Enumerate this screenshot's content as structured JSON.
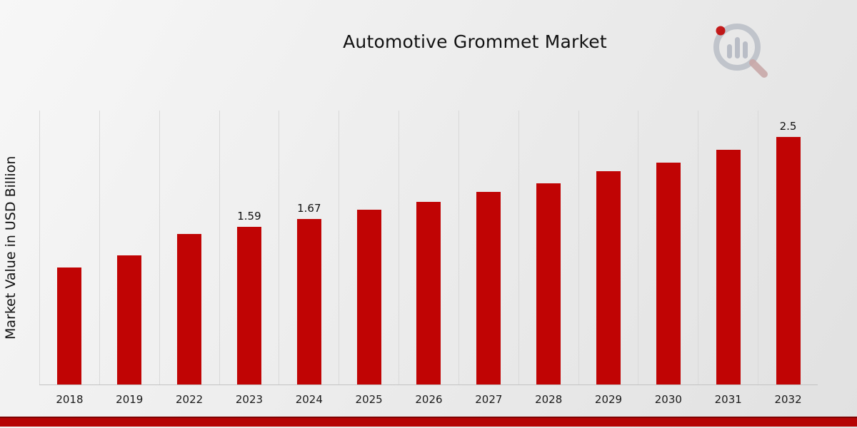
{
  "chart_data": {
    "type": "bar",
    "title": "Automotive Grommet Market",
    "xlabel": "",
    "ylabel": "Market Value in USD Billion",
    "categories": [
      "2018",
      "2019",
      "2022",
      "2023",
      "2024",
      "2025",
      "2026",
      "2027",
      "2028",
      "2029",
      "2030",
      "2031",
      "2032"
    ],
    "values": [
      1.18,
      1.3,
      1.52,
      1.59,
      1.67,
      1.76,
      1.84,
      1.94,
      2.03,
      2.15,
      2.24,
      2.37,
      2.5
    ],
    "bar_labels": {
      "2023": "1.59",
      "2024": "1.67",
      "2032": "2.5"
    },
    "ylim": [
      0,
      2.77
    ],
    "grid": "vertical",
    "legend": "none",
    "bar_color": "#C00404",
    "colors": {
      "accent_red": "#C00404",
      "ribbon_red": "#B50404",
      "ribbon_dark_red": "#7D0202",
      "gridline_gray": "#D9D9D9",
      "logo_gray": "#B9BDC6",
      "text": "#111111"
    }
  }
}
